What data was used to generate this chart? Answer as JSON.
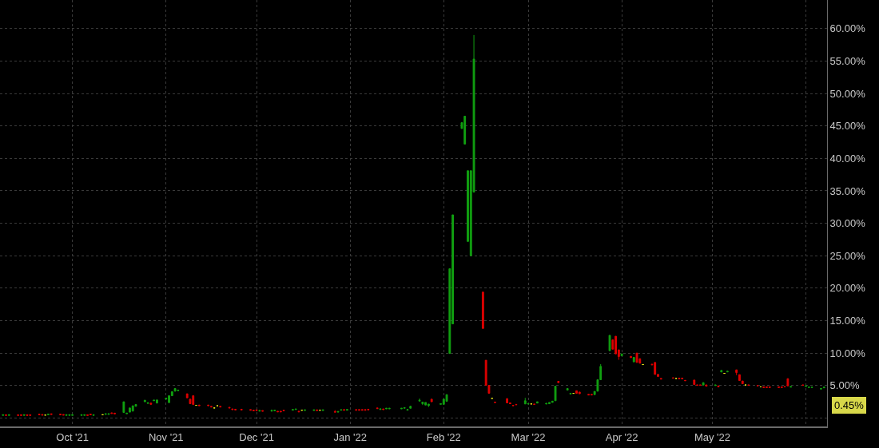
{
  "chart_data": {
    "type": "candlestick",
    "x": [
      "2021-09-08",
      "2021-09-09",
      "2021-09-10",
      "2021-09-13",
      "2021-09-14",
      "2021-09-15",
      "2021-09-16",
      "2021-09-17",
      "2021-09-20",
      "2021-09-21",
      "2021-09-22",
      "2021-09-23",
      "2021-09-24",
      "2021-09-27",
      "2021-09-28",
      "2021-09-29",
      "2021-09-30",
      "2021-10-01",
      "2021-10-04",
      "2021-10-05",
      "2021-10-06",
      "2021-10-07",
      "2021-10-08",
      "2021-10-11",
      "2021-10-12",
      "2021-10-13",
      "2021-10-14",
      "2021-10-15",
      "2021-10-18",
      "2021-10-19",
      "2021-10-20",
      "2021-10-21",
      "2021-10-22",
      "2021-10-25",
      "2021-10-26",
      "2021-10-27",
      "2021-10-28",
      "2021-10-29",
      "2021-11-01",
      "2021-11-02",
      "2021-11-03",
      "2021-11-04",
      "2021-11-05",
      "2021-11-08",
      "2021-11-09",
      "2021-11-10",
      "2021-11-11",
      "2021-11-12",
      "2021-11-15",
      "2021-11-16",
      "2021-11-17",
      "2021-11-18",
      "2021-11-19",
      "2021-11-22",
      "2021-11-23",
      "2021-11-24",
      "2021-11-26",
      "2021-11-29",
      "2021-11-30",
      "2021-12-01",
      "2021-12-02",
      "2021-12-03",
      "2021-12-06",
      "2021-12-07",
      "2021-12-08",
      "2021-12-09",
      "2021-12-10",
      "2021-12-13",
      "2021-12-14",
      "2021-12-15",
      "2021-12-16",
      "2021-12-17",
      "2021-12-20",
      "2021-12-21",
      "2021-12-22",
      "2021-12-23",
      "2021-12-27",
      "2021-12-28",
      "2021-12-29",
      "2021-12-30",
      "2021-12-31",
      "2022-01-03",
      "2022-01-04",
      "2022-01-05",
      "2022-01-06",
      "2022-01-07",
      "2022-01-10",
      "2022-01-11",
      "2022-01-12",
      "2022-01-13",
      "2022-01-14",
      "2022-01-18",
      "2022-01-19",
      "2022-01-20",
      "2022-01-21",
      "2022-01-24",
      "2022-01-25",
      "2022-01-26",
      "2022-01-27",
      "2022-01-28",
      "2022-01-31",
      "2022-02-01",
      "2022-02-02",
      "2022-02-03",
      "2022-02-04",
      "2022-02-07",
      "2022-02-08",
      "2022-02-09",
      "2022-02-10",
      "2022-02-11",
      "2022-02-14",
      "2022-02-15",
      "2022-02-16",
      "2022-02-17",
      "2022-02-18",
      "2022-02-22",
      "2022-02-23",
      "2022-02-24",
      "2022-02-25",
      "2022-02-28",
      "2022-03-01",
      "2022-03-02",
      "2022-03-03",
      "2022-03-04",
      "2022-03-07",
      "2022-03-08",
      "2022-03-09",
      "2022-03-10",
      "2022-03-11",
      "2022-03-14",
      "2022-03-15",
      "2022-03-16",
      "2022-03-17",
      "2022-03-18",
      "2022-03-21",
      "2022-03-22",
      "2022-03-23",
      "2022-03-24",
      "2022-03-25",
      "2022-03-28",
      "2022-03-29",
      "2022-03-30",
      "2022-03-31",
      "2022-04-01",
      "2022-04-04",
      "2022-04-05",
      "2022-04-06",
      "2022-04-07",
      "2022-04-08",
      "2022-04-11",
      "2022-04-12",
      "2022-04-13",
      "2022-04-14",
      "2022-04-18",
      "2022-04-19",
      "2022-04-20",
      "2022-04-21",
      "2022-04-22",
      "2022-04-25",
      "2022-04-26",
      "2022-04-27",
      "2022-04-28",
      "2022-04-29",
      "2022-05-02",
      "2022-05-03",
      "2022-05-04",
      "2022-05-05",
      "2022-05-06",
      "2022-05-09",
      "2022-05-10",
      "2022-05-11",
      "2022-05-12",
      "2022-05-13",
      "2022-05-16",
      "2022-05-17",
      "2022-05-18",
      "2022-05-19",
      "2022-05-20",
      "2022-05-23",
      "2022-05-24",
      "2022-05-25",
      "2022-05-26",
      "2022-05-27",
      "2022-05-31",
      "2022-06-01",
      "2022-06-02",
      "2022-06-03",
      "2022-06-06",
      "2022-06-07"
    ],
    "ohlc": [
      [
        0.4,
        0.5,
        0.4,
        0.5
      ],
      [
        0.5,
        0.5,
        0.4,
        0.4
      ],
      [
        0.4,
        0.5,
        0.4,
        0.5
      ],
      [
        0.5,
        0.5,
        0.4,
        0.4
      ],
      [
        0.5,
        0.5,
        0.4,
        0.4
      ],
      [
        0.4,
        0.5,
        0.4,
        0.5
      ],
      [
        0.5,
        0.5,
        0.4,
        0.4
      ],
      [
        0.5,
        0.5,
        0.4,
        0.4
      ],
      [
        0.6,
        0.6,
        0.5,
        0.5
      ],
      [
        0.55,
        0.55,
        0.45,
        0.45
      ],
      [
        0.45,
        0.45,
        0.45,
        0.45
      ],
      [
        0.5,
        0.6,
        0.5,
        0.6
      ],
      [
        0.65,
        0.65,
        0.55,
        0.55
      ],
      [
        0.6,
        0.6,
        0.5,
        0.5
      ],
      [
        0.55,
        0.55,
        0.45,
        0.45
      ],
      [
        0.4,
        0.5,
        0.4,
        0.5
      ],
      [
        0.4,
        0.5,
        0.4,
        0.5
      ],
      [
        0.4,
        0.5,
        0.4,
        0.5
      ],
      [
        0.4,
        0.5,
        0.4,
        0.5
      ],
      [
        0.4,
        0.5,
        0.4,
        0.5
      ],
      [
        0.5,
        0.5,
        0.4,
        0.4
      ],
      [
        0.6,
        0.6,
        0.5,
        0.5
      ],
      [
        0.4,
        0.5,
        0.4,
        0.5
      ],
      [
        0.5,
        0.5,
        0.5,
        0.5
      ],
      [
        0.55,
        0.65,
        0.55,
        0.65
      ],
      [
        0.55,
        0.65,
        0.55,
        0.65
      ],
      [
        0.8,
        0.8,
        0.7,
        0.7
      ],
      [
        0.75,
        0.75,
        0.65,
        0.65
      ],
      [
        0.85,
        2.5,
        0.85,
        2.5
      ],
      [
        0.65,
        0.75,
        0.65,
        0.75
      ],
      [
        0.9,
        1.55,
        0.9,
        1.55
      ],
      [
        1.06,
        1.88,
        1.06,
        1.88
      ],
      [
        1.8,
        2.08,
        1.8,
        2.08
      ],
      [
        2.5,
        2.74,
        2.5,
        2.74
      ],
      [
        2.25,
        2.35,
        2.25,
        2.35
      ],
      [
        2.3,
        2.3,
        2.1,
        2.1
      ],
      [
        2.65,
        2.75,
        2.65,
        2.75
      ],
      [
        2.3,
        2.78,
        2.3,
        2.78
      ],
      [
        2.9,
        3.05,
        2.9,
        3.05
      ],
      [
        2.37,
        3.43,
        2.37,
        3.43
      ],
      [
        3.43,
        4.05,
        3.43,
        4.05
      ],
      [
        4.13,
        4.54,
        4.13,
        4.54
      ],
      [
        4.2,
        4.3,
        4.2,
        4.3
      ],
      [
        3.73,
        3.73,
        3.11,
        3.11
      ],
      [
        2.9,
        2.9,
        2.2,
        2.2
      ],
      [
        3.43,
        3.43,
        2.08,
        2.08
      ],
      [
        1.96,
        1.96,
        1.96,
        1.96
      ],
      [
        2.0,
        2.0,
        1.9,
        1.9
      ],
      [
        2.0,
        2.0,
        1.9,
        1.9
      ],
      [
        1.8,
        1.8,
        1.7,
        1.7
      ],
      [
        1.55,
        1.55,
        1.55,
        1.55
      ],
      [
        1.88,
        1.88,
        1.88,
        1.88
      ],
      [
        1.8,
        1.8,
        1.7,
        1.7
      ],
      [
        1.65,
        1.65,
        1.55,
        1.55
      ],
      [
        1.4,
        1.4,
        1.3,
        1.3
      ],
      [
        1.35,
        1.35,
        1.25,
        1.25
      ],
      [
        1.35,
        1.35,
        1.25,
        1.25
      ],
      [
        1.3,
        1.3,
        1.2,
        1.2
      ],
      [
        1.2,
        1.2,
        1.1,
        1.1
      ],
      [
        1.25,
        1.25,
        1.15,
        1.15
      ],
      [
        1.05,
        1.15,
        1.05,
        1.15
      ],
      [
        1.15,
        1.15,
        1.05,
        1.05
      ],
      [
        1.05,
        1.3,
        1.05,
        1.15
      ],
      [
        1.1,
        1.2,
        1.1,
        1.2
      ],
      [
        1.05,
        1.05,
        0.95,
        0.95
      ],
      [
        1.05,
        1.05,
        0.95,
        0.95
      ],
      [
        1.2,
        1.2,
        1.1,
        1.1
      ],
      [
        1.2,
        1.3,
        1.2,
        1.3
      ],
      [
        1.3,
        1.38,
        1.3,
        1.38
      ],
      [
        1.05,
        1.05,
        0.95,
        0.95
      ],
      [
        1.2,
        1.2,
        1.2,
        1.2
      ],
      [
        1.15,
        1.25,
        1.15,
        1.25
      ],
      [
        1.15,
        1.25,
        1.15,
        1.25
      ],
      [
        1.25,
        1.25,
        1.15,
        1.15
      ],
      [
        1.2,
        1.2,
        1.2,
        1.2
      ],
      [
        1.15,
        1.25,
        1.15,
        1.25
      ],
      [
        1.0,
        1.2,
        0.9,
        0.9
      ],
      [
        0.9,
        1.0,
        0.9,
        1.0
      ],
      [
        1.2,
        1.27,
        1.2,
        1.27
      ],
      [
        1.3,
        1.3,
        1.2,
        1.2
      ],
      [
        1.2,
        1.3,
        1.2,
        1.3
      ],
      [
        1.3,
        1.3,
        1.2,
        1.2
      ],
      [
        1.3,
        1.3,
        1.2,
        1.2
      ],
      [
        1.3,
        1.3,
        1.2,
        1.2
      ],
      [
        1.3,
        1.3,
        1.2,
        1.2
      ],
      [
        1.35,
        1.35,
        1.25,
        1.25
      ],
      [
        1.55,
        1.55,
        1.45,
        1.45
      ],
      [
        1.3,
        1.4,
        1.3,
        1.4
      ],
      [
        1.4,
        1.4,
        1.3,
        1.3
      ],
      [
        1.4,
        1.5,
        1.4,
        1.5
      ],
      [
        1.4,
        1.5,
        1.4,
        1.5
      ],
      [
        1.4,
        1.5,
        1.4,
        1.5
      ],
      [
        1.5,
        1.6,
        1.5,
        1.6
      ],
      [
        1.2,
        1.3,
        1.2,
        1.3
      ],
      [
        1.5,
        1.9,
        1.5,
        1.8
      ],
      [
        2.6,
        3.0,
        2.6,
        2.75
      ],
      [
        2.2,
        2.45,
        2.0,
        2.45
      ],
      [
        2.0,
        2.4,
        2.0,
        2.4
      ],
      [
        1.9,
        2.15,
        1.7,
        2.15
      ],
      [
        2.9,
        2.9,
        2.5,
        2.5
      ],
      [
        2.1,
        2.2,
        2.1,
        2.2
      ],
      [
        2.1,
        2.9,
        2.1,
        2.9
      ],
      [
        2.57,
        3.6,
        2.57,
        3.6
      ],
      [
        9.95,
        23.0,
        9.95,
        23.0
      ],
      [
        14.5,
        31.3,
        14.5,
        31.3
      ],
      [
        44.6,
        45.5,
        44.6,
        45.5
      ],
      [
        42.2,
        46.5,
        42.2,
        46.5
      ],
      [
        27.2,
        38.1,
        27.2,
        38.1
      ],
      [
        25.0,
        38.1,
        25.0,
        38.1
      ],
      [
        34.8,
        59.0,
        34.8,
        55.3
      ],
      [
        19.4,
        19.4,
        13.8,
        13.8
      ],
      [
        8.9,
        8.9,
        5.03,
        5.03
      ],
      [
        5.03,
        5.03,
        3.8,
        3.8
      ],
      [
        3.03,
        3.03,
        3.03,
        3.03
      ],
      [
        2.45,
        2.45,
        2.38,
        2.38
      ],
      [
        2.99,
        2.99,
        2.33,
        2.33
      ],
      [
        2.33,
        2.33,
        2.2,
        2.2
      ],
      [
        1.95,
        1.95,
        1.9,
        1.9
      ],
      [
        2.1,
        2.1,
        2.05,
        2.05
      ],
      [
        2.17,
        3.1,
        2.17,
        2.66
      ],
      [
        2.15,
        2.2,
        2.15,
        2.2
      ],
      [
        2.17,
        2.17,
        2.17,
        2.17
      ],
      [
        2.15,
        2.15,
        2.1,
        2.1
      ],
      [
        2.3,
        2.5,
        2.3,
        2.5
      ],
      [
        2.15,
        2.25,
        2.15,
        2.25
      ],
      [
        2.2,
        2.4,
        2.2,
        2.4
      ],
      [
        2.4,
        2.6,
        2.4,
        2.6
      ],
      [
        2.66,
        4.9,
        2.66,
        4.9
      ],
      [
        5.65,
        5.65,
        5.45,
        5.45
      ],
      [
        4.3,
        4.54,
        4.3,
        4.54
      ],
      [
        3.7,
        3.8,
        3.7,
        3.8
      ],
      [
        3.8,
        3.8,
        3.8,
        3.8
      ],
      [
        4.2,
        4.2,
        3.8,
        3.8
      ],
      [
        4.0,
        4.0,
        3.73,
        3.73
      ],
      [
        3.65,
        3.65,
        3.55,
        3.55
      ],
      [
        3.65,
        3.65,
        3.55,
        3.55
      ],
      [
        3.6,
        4.1,
        3.6,
        4.1
      ],
      [
        4.13,
        5.9,
        4.13,
        5.9
      ],
      [
        5.9,
        8.3,
        5.9,
        7.95
      ],
      [
        10.37,
        12.74,
        10.37,
        12.74
      ],
      [
        12.04,
        12.04,
        10.6,
        10.6
      ],
      [
        12.6,
        12.6,
        9.88,
        9.88
      ],
      [
        10.5,
        10.5,
        8.97,
        9.46
      ],
      [
        9.58,
        9.88,
        9.58,
        9.88
      ],
      [
        9.5,
        9.5,
        9.3,
        9.3
      ],
      [
        8.65,
        9.34,
        8.65,
        9.34
      ],
      [
        10.0,
        10.0,
        8.56,
        8.56
      ],
      [
        9.14,
        9.14,
        8.44,
        8.44
      ],
      [
        8.23,
        8.23,
        8.23,
        8.23
      ],
      [
        8.3,
        8.3,
        8.2,
        8.2
      ],
      [
        8.56,
        8.56,
        6.72,
        6.72
      ],
      [
        6.72,
        6.72,
        6.4,
        6.4
      ],
      [
        6.1,
        6.1,
        6.0,
        6.0
      ],
      [
        6.2,
        6.2,
        6.15,
        6.15
      ],
      [
        6.1,
        6.1,
        6.1,
        6.1
      ],
      [
        6.15,
        6.15,
        6.05,
        6.05
      ],
      [
        6.15,
        6.15,
        6.05,
        6.05
      ],
      [
        5.8,
        5.8,
        5.75,
        5.75
      ],
      [
        5.85,
        5.85,
        5.15,
        5.15
      ],
      [
        5.1,
        5.1,
        5.05,
        5.05
      ],
      [
        5.1,
        5.1,
        5.05,
        5.05
      ],
      [
        5.08,
        5.45,
        5.08,
        5.45
      ],
      [
        5.1,
        5.1,
        4.9,
        4.9
      ],
      [
        5.0,
        5.08,
        5.0,
        5.08
      ],
      [
        4.95,
        4.95,
        4.8,
        4.8
      ],
      [
        7.09,
        7.33,
        7.09,
        7.33
      ],
      [
        6.88,
        6.88,
        6.88,
        6.88
      ],
      [
        7.1,
        7.2,
        7.1,
        7.2
      ],
      [
        7.42,
        7.42,
        6.6,
        7.0
      ],
      [
        6.68,
        6.68,
        5.77,
        5.77
      ],
      [
        5.7,
        5.7,
        5.28,
        5.28
      ],
      [
        5.08,
        5.08,
        5.08,
        5.08
      ],
      [
        5.1,
        5.1,
        5.05,
        5.05
      ],
      [
        5.0,
        5.0,
        4.95,
        4.95
      ],
      [
        4.8,
        4.8,
        4.8,
        4.8
      ],
      [
        4.8,
        4.8,
        4.7,
        4.7
      ],
      [
        4.8,
        4.8,
        4.7,
        4.7
      ],
      [
        4.8,
        4.8,
        4.7,
        4.7
      ],
      [
        4.8,
        4.8,
        4.7,
        4.7
      ],
      [
        4.8,
        4.8,
        4.7,
        4.7
      ],
      [
        4.85,
        4.85,
        4.8,
        4.8
      ],
      [
        6.06,
        6.06,
        4.95,
        4.95
      ],
      [
        4.75,
        4.85,
        4.75,
        4.85
      ],
      [
        5.1,
        5.1,
        5.05,
        5.05
      ],
      [
        4.85,
        4.95,
        4.85,
        4.95
      ],
      [
        4.7,
        4.75,
        4.7,
        4.75
      ],
      [
        4.7,
        4.75,
        4.7,
        4.75
      ],
      [
        4.45,
        4.55,
        4.45,
        4.55
      ],
      [
        4.65,
        4.75,
        4.65,
        4.75
      ]
    ],
    "colors": [
      "#11a011",
      "#dd0000",
      "#11a011",
      "#dd0000",
      "#dd0000",
      "#11a011",
      "#dd0000",
      "#dd0000",
      "#dd0000",
      "#dd0000",
      "#e6e619",
      "#11a011",
      "#dd0000",
      "#dd0000",
      "#dd0000",
      "#11a011",
      "#11a011",
      "#11a011",
      "#11a011",
      "#11a011",
      "#dd0000",
      "#dd0000",
      "#11a011",
      "#e6e619",
      "#11a011",
      "#11a011",
      "#dd0000",
      "#dd0000",
      "#11a011",
      "#11a011",
      "#11a011",
      "#11a011",
      "#11a011",
      "#11a011",
      "#11a011",
      "#dd0000",
      "#11a011",
      "#11a011",
      "#11a011",
      "#11a011",
      "#11a011",
      "#11a011",
      "#11a011",
      "#dd0000",
      "#dd0000",
      "#dd0000",
      "#e6e619",
      "#dd0000",
      "#dd0000",
      "#dd0000",
      "#e6e619",
      "#e6e619",
      "#dd0000",
      "#dd0000",
      "#dd0000",
      "#dd0000",
      "#dd0000",
      "#dd0000",
      "#dd0000",
      "#dd0000",
      "#11a011",
      "#dd0000",
      "#11a011",
      "#11a011",
      "#dd0000",
      "#dd0000",
      "#dd0000",
      "#11a011",
      "#11a011",
      "#dd0000",
      "#e6e619",
      "#11a011",
      "#11a011",
      "#dd0000",
      "#e6e619",
      "#11a011",
      "#dd0000",
      "#11a011",
      "#11a011",
      "#dd0000",
      "#11a011",
      "#dd0000",
      "#dd0000",
      "#dd0000",
      "#dd0000",
      "#dd0000",
      "#dd0000",
      "#11a011",
      "#dd0000",
      "#11a011",
      "#11a011",
      "#11a011",
      "#11a011",
      "#11a011",
      "#11a011",
      "#11a011",
      "#11a011",
      "#11a011",
      "#11a011",
      "#dd0000",
      "#11a011",
      "#11a011",
      "#11a011",
      "#11a011",
      "#11a011",
      "#11a011",
      "#11a011",
      "#11a011",
      "#11a011",
      "#11a011",
      "#dd0000",
      "#dd0000",
      "#dd0000",
      "#e6e619",
      "#dd0000",
      "#dd0000",
      "#dd0000",
      "#dd0000",
      "#dd0000",
      "#11a011",
      "#11a011",
      "#e6e619",
      "#dd0000",
      "#11a011",
      "#11a011",
      "#11a011",
      "#11a011",
      "#11a011",
      "#dd0000",
      "#11a011",
      "#11a011",
      "#e6e619",
      "#dd0000",
      "#dd0000",
      "#dd0000",
      "#dd0000",
      "#11a011",
      "#11a011",
      "#11a011",
      "#11a011",
      "#dd0000",
      "#dd0000",
      "#dd0000",
      "#11a011",
      "#dd0000",
      "#11a011",
      "#dd0000",
      "#dd0000",
      "#e6e619",
      "#dd0000",
      "#dd0000",
      "#dd0000",
      "#dd0000",
      "#dd0000",
      "#e6e619",
      "#dd0000",
      "#dd0000",
      "#dd0000",
      "#dd0000",
      "#dd0000",
      "#dd0000",
      "#11a011",
      "#dd0000",
      "#11a011",
      "#dd0000",
      "#11a011",
      "#e6e619",
      "#11a011",
      "#dd0000",
      "#dd0000",
      "#dd0000",
      "#e6e619",
      "#dd0000",
      "#dd0000",
      "#e6e619",
      "#dd0000",
      "#dd0000",
      "#dd0000",
      "#dd0000",
      "#dd0000",
      "#dd0000",
      "#dd0000",
      "#11a011",
      "#dd0000",
      "#11a011",
      "#11a011",
      "#11a011",
      "#11a011",
      "#11a011"
    ],
    "xlim": [
      "2021-09-07",
      "2022-06-08"
    ],
    "xticks": [
      {
        "value": "2021-10-01",
        "label": "Oct '21"
      },
      {
        "value": "2021-11-01",
        "label": "Nov '21"
      },
      {
        "value": "2021-12-01",
        "label": "Dec '21"
      },
      {
        "value": "2022-01-01",
        "label": "Jan '22"
      },
      {
        "value": "2022-02-01",
        "label": "Feb '22"
      },
      {
        "value": "2022-03-01",
        "label": "Mar '22"
      },
      {
        "value": "2022-04-01",
        "label": "Apr '22"
      },
      {
        "value": "2022-05-01",
        "label": "May '22"
      },
      {
        "value": "2022-06-01",
        "label": null
      }
    ],
    "ylim": [
      -1.3,
      64.4
    ],
    "yticks": [
      {
        "value": 0,
        "label": null
      },
      {
        "value": 5,
        "label": "5.00%"
      },
      {
        "value": 10,
        "label": "10.00%"
      },
      {
        "value": 15,
        "label": "15.00%"
      },
      {
        "value": 20,
        "label": "20.00%"
      },
      {
        "value": 25,
        "label": "25.00%"
      },
      {
        "value": 30,
        "label": "30.00%"
      },
      {
        "value": 35,
        "label": "35.00%"
      },
      {
        "value": 40,
        "label": "40.00%"
      },
      {
        "value": 45,
        "label": "45.00%"
      },
      {
        "value": 50,
        "label": "50.00%"
      },
      {
        "value": 55,
        "label": "55.00%"
      },
      {
        "value": 60,
        "label": "60.00%"
      }
    ],
    "annotations": [
      "0.45%"
    ],
    "grid": true
  }
}
